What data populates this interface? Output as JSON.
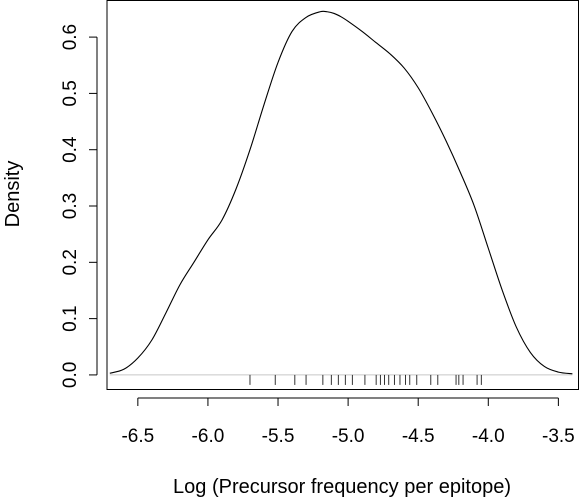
{
  "chart_data": {
    "type": "line",
    "title": "",
    "xlabel": "Log (Precursor frequency per epitope)",
    "ylabel": "Density",
    "xlim": [
      -6.72,
      -3.36
    ],
    "ylim": [
      -0.025,
      0.665
    ],
    "x_ticks": [
      -6.5,
      -6.0,
      -5.5,
      -5.0,
      -4.5,
      -4.0,
      -3.5
    ],
    "x_tick_labels": [
      "-6.5",
      "-6.0",
      "-5.5",
      "-5.0",
      "-4.5",
      "-4.0",
      "-3.5"
    ],
    "y_ticks": [
      0.0,
      0.1,
      0.2,
      0.3,
      0.4,
      0.5,
      0.6
    ],
    "y_tick_labels": [
      "0.0",
      "0.1",
      "0.2",
      "0.3",
      "0.4",
      "0.5",
      "0.6"
    ],
    "grid": false,
    "legend": "none",
    "baseline_color": "#c8c8c8",
    "line_color": "#000000",
    "series": [
      {
        "x": [
          -6.7,
          -6.6,
          -6.5,
          -6.4,
          -6.3,
          -6.2,
          -6.1,
          -6.0,
          -5.9,
          -5.8,
          -5.7,
          -5.6,
          -5.5,
          -5.4,
          -5.3,
          -5.2,
          -5.15,
          -5.1,
          -5.05,
          -5.0,
          -4.9,
          -4.8,
          -4.7,
          -4.6,
          -4.5,
          -4.4,
          -4.3,
          -4.2,
          -4.1,
          -4.0,
          -3.9,
          -3.8,
          -3.7,
          -3.6,
          -3.5,
          -3.4
        ],
        "y": [
          0.003,
          0.01,
          0.03,
          0.062,
          0.11,
          0.16,
          0.2,
          0.24,
          0.275,
          0.33,
          0.4,
          0.48,
          0.555,
          0.61,
          0.635,
          0.645,
          0.645,
          0.642,
          0.636,
          0.628,
          0.61,
          0.59,
          0.57,
          0.545,
          0.51,
          0.465,
          0.415,
          0.36,
          0.3,
          0.225,
          0.15,
          0.085,
          0.04,
          0.015,
          0.005,
          0.002
        ]
      }
    ],
    "rug": [
      -5.7,
      -5.52,
      -5.38,
      -5.3,
      -5.18,
      -5.12,
      -5.07,
      -5.02,
      -4.97,
      -4.88,
      -4.8,
      -4.77,
      -4.74,
      -4.71,
      -4.67,
      -4.63,
      -4.59,
      -4.56,
      -4.51,
      -4.41,
      -4.36,
      -4.23,
      -4.21,
      -4.18,
      -4.08,
      -4.05
    ]
  }
}
